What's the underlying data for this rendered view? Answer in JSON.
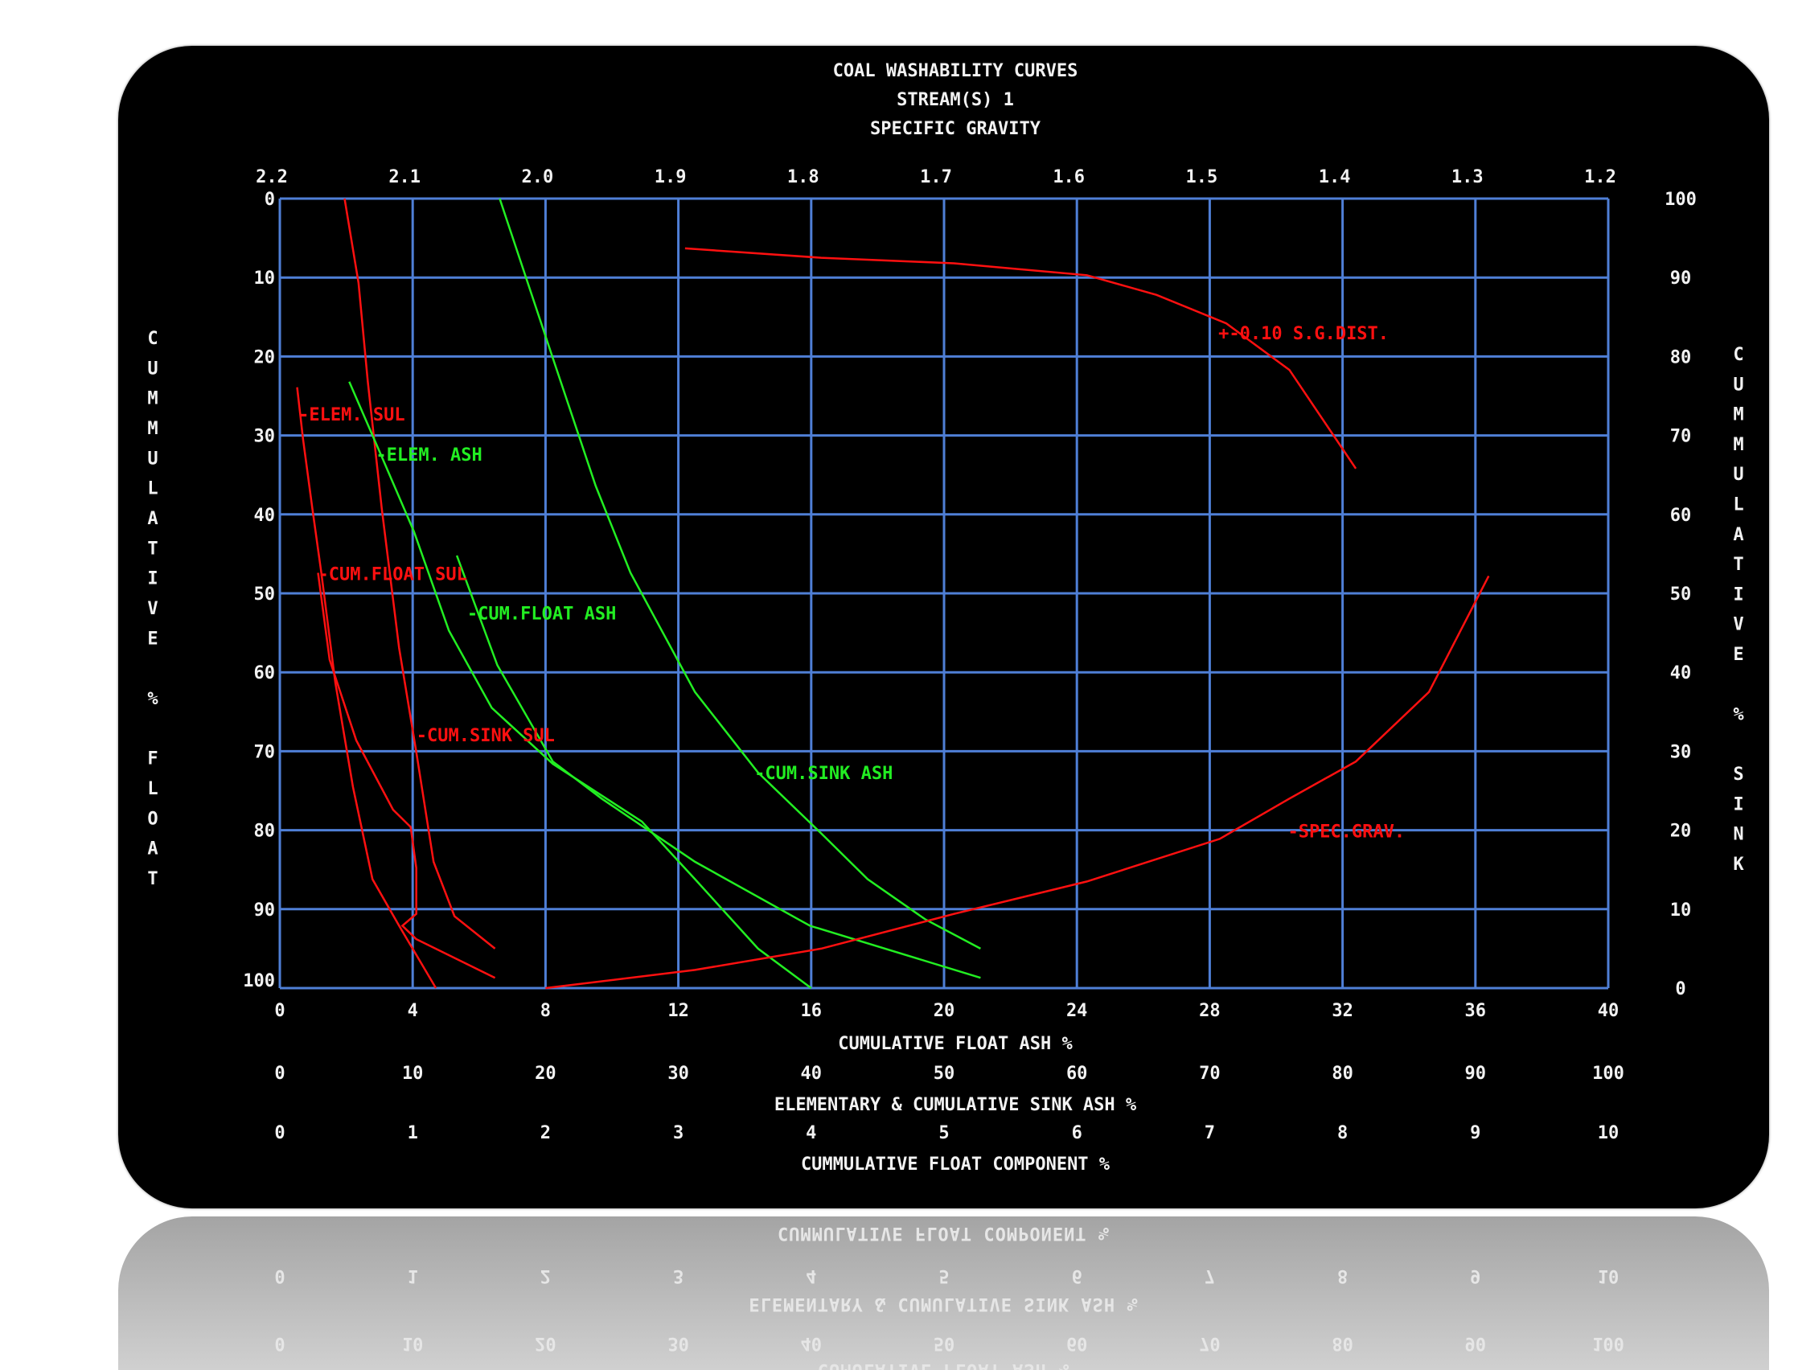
{
  "chart_data": {
    "type": "line",
    "title": "COAL WASHABILITY CURVES",
    "subtitle": "STREAM(S) 1",
    "top_axis_title": "SPECIFIC GRAVITY",
    "top_axis_ticks": [
      "2.2",
      "2.1",
      "2.0",
      "1.9",
      "1.8",
      "1.7",
      "1.6",
      "1.5",
      "1.4",
      "1.3",
      "1.2"
    ],
    "left_axis_label": "CUMMULATIVE % FLOAT",
    "left_axis_ticks": [
      "0",
      "10",
      "20",
      "30",
      "40",
      "50",
      "60",
      "70",
      "80",
      "90",
      "100"
    ],
    "right_axis_label": "CUMMULATIVE % SINK",
    "right_axis_ticks": [
      "100",
      "90",
      "80",
      "70",
      "60",
      "50",
      "40",
      "30",
      "20",
      "10",
      "0"
    ],
    "bottom_axes": [
      {
        "title": "CUMULATIVE FLOAT ASH %",
        "ticks": [
          "0",
          "4",
          "8",
          "12",
          "16",
          "20",
          "24",
          "28",
          "32",
          "36",
          "40"
        ]
      },
      {
        "title": "ELEMENTARY & CUMULATIVE SINK ASH %",
        "ticks": [
          "0",
          "10",
          "20",
          "30",
          "40",
          "50",
          "60",
          "70",
          "80",
          "90",
          "100"
        ]
      },
      {
        "title": "CUMMULATIVE FLOAT COMPONENT %",
        "ticks": [
          "0",
          "1",
          "2",
          "3",
          "4",
          "5",
          "6",
          "7",
          "8",
          "9",
          "10"
        ]
      }
    ],
    "xlim": [
      0,
      40
    ],
    "ylim": [
      0,
      100
    ],
    "y_inverted": true,
    "grid": true,
    "colors": {
      "background": "#000000",
      "grid": "#4f7fd6",
      "text": "#f2f2f2",
      "sulfur": "#ff1010",
      "ash": "#22ee22"
    },
    "series": [
      {
        "name": "ELEM. SUL",
        "color": "#ff1010",
        "label": "-ELEM. SUL",
        "label_at": [
          0.56,
          27.3
        ],
        "points": [
          [
            0.52,
            23.9
          ],
          [
            0.7,
            30.5
          ],
          [
            0.98,
            39.3
          ],
          [
            1.25,
            47.4
          ],
          [
            1.67,
            61.3
          ],
          [
            2.2,
            74.5
          ],
          [
            2.79,
            86.2
          ],
          [
            3.59,
            92.1
          ],
          [
            4.7,
            100
          ]
        ]
      },
      {
        "name": "CUM.FLOAT SUL",
        "color": "#ff1010",
        "label": "-CUM.FLOAT SUL",
        "label_at": [
          1.15,
          47.5
        ],
        "points": [
          [
            1.15,
            47.4
          ],
          [
            1.5,
            58.4
          ],
          [
            2.3,
            68.6
          ],
          [
            3.41,
            77.4
          ],
          [
            3.94,
            79.6
          ],
          [
            4.11,
            84.8
          ],
          [
            4.11,
            90.6
          ],
          [
            3.69,
            92.1
          ],
          [
            4.11,
            93.8
          ],
          [
            6.48,
            98.7
          ]
        ]
      },
      {
        "name": "CUM.SINK SUL",
        "color": "#ff1010",
        "label": "-CUM.SINK SUL",
        "label_at": [
          4.11,
          67.9
        ],
        "points": [
          [
            1.95,
            0
          ],
          [
            2.37,
            10.7
          ],
          [
            2.65,
            23.2
          ],
          [
            3.07,
            39.3
          ],
          [
            3.59,
            56.9
          ],
          [
            4.11,
            70.1
          ],
          [
            4.63,
            84.0
          ],
          [
            5.26,
            90.9
          ],
          [
            6.48,
            95.0
          ]
        ]
      },
      {
        "name": "ELEM. ASH",
        "color": "#22ee22",
        "label": "-ELEM. ASH",
        "label_at": [
          2.89,
          32.4
        ],
        "points": [
          [
            2.09,
            23.2
          ],
          [
            3.07,
            32.7
          ],
          [
            4.04,
            42.2
          ],
          [
            5.09,
            54.7
          ],
          [
            6.38,
            64.5
          ],
          [
            8.22,
            71.6
          ],
          [
            10.9,
            78.9
          ],
          [
            12.5,
            86.2
          ],
          [
            14.4,
            95.0
          ],
          [
            16.0,
            100
          ]
        ]
      },
      {
        "name": "CUM.FLOAT ASH",
        "color": "#22ee22",
        "label": "-CUM.FLOAT ASH",
        "label_at": [
          5.64,
          52.5
        ],
        "points": [
          [
            5.33,
            45.2
          ],
          [
            6.55,
            59.1
          ],
          [
            8.22,
            71.3
          ],
          [
            9.69,
            76.0
          ],
          [
            12.5,
            84.0
          ],
          [
            15.96,
            92.1
          ],
          [
            21.1,
            98.7
          ]
        ]
      },
      {
        "name": "CUM.SINK ASH",
        "color": "#22ee22",
        "label": "-CUM.SINK ASH",
        "label_at": [
          14.29,
          72.7
        ],
        "points": [
          [
            6.62,
            0
          ],
          [
            8.22,
            20.2
          ],
          [
            9.51,
            36.4
          ],
          [
            10.56,
            47.4
          ],
          [
            12.5,
            62.5
          ],
          [
            14.4,
            72.7
          ],
          [
            16.3,
            80.4
          ],
          [
            17.7,
            86.2
          ],
          [
            19.44,
            91.3
          ],
          [
            21.1,
            95.0
          ]
        ]
      },
      {
        "name": "SPEC.GRAV.",
        "color": "#ff1010",
        "label": "-SPEC.GRAV.",
        "label_at": [
          30.35,
          80.1
        ],
        "points": [
          [
            8.0,
            100
          ],
          [
            12.5,
            97.7
          ],
          [
            16.3,
            95.0
          ],
          [
            20.3,
            90.6
          ],
          [
            24.3,
            86.5
          ],
          [
            28.3,
            81.1
          ],
          [
            30.4,
            76.0
          ],
          [
            32.4,
            71.3
          ],
          [
            34.6,
            62.5
          ],
          [
            36.4,
            47.8
          ]
        ]
      },
      {
        "name": "+-0.10 S.G.DIST.",
        "color": "#ff1010",
        "label": "+-0.10 S.G.DIST.",
        "label_at": [
          28.26,
          17.0
        ],
        "points": [
          [
            12.2,
            6.3
          ],
          [
            16.3,
            7.5
          ],
          [
            20.3,
            8.2
          ],
          [
            24.3,
            9.7
          ],
          [
            26.4,
            12.2
          ],
          [
            28.5,
            15.8
          ],
          [
            30.4,
            21.7
          ],
          [
            32.4,
            34.2
          ]
        ]
      }
    ]
  }
}
